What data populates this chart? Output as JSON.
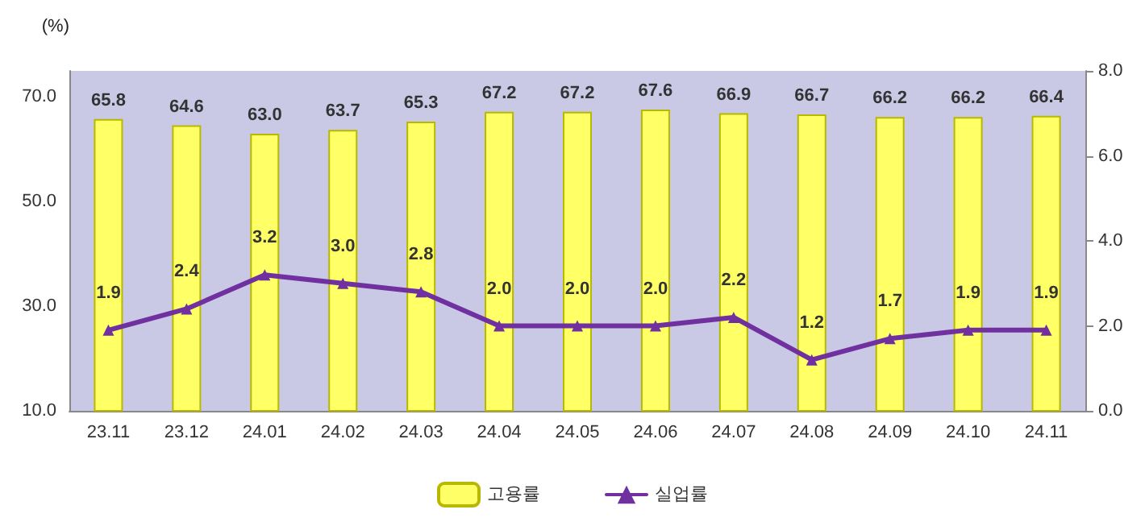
{
  "chart_data": {
    "type": "bar",
    "ylabel": "(%)",
    "categories": [
      "23.11",
      "23.12",
      "24.01",
      "24.02",
      "24.03",
      "24.04",
      "24.05",
      "24.06",
      "24.07",
      "24.08",
      "24.09",
      "24.10",
      "24.11"
    ],
    "series": [
      {
        "name": "고용률",
        "color": "#ffff66",
        "values": [
          65.8,
          64.6,
          63.0,
          63.7,
          65.3,
          67.2,
          67.2,
          67.6,
          66.9,
          66.7,
          66.2,
          66.2,
          66.4
        ],
        "value_labels": [
          "65.8",
          "64.6",
          "63.0",
          "63.7",
          "65.3",
          "67.2",
          "67.2",
          "67.6",
          "66.9",
          "66.7",
          "66.2",
          "66.2",
          "66.4"
        ]
      },
      {
        "name": "실업률",
        "type": "line",
        "axis": "y2",
        "color": "#7030a0",
        "values": [
          1.9,
          2.4,
          3.2,
          3.0,
          2.8,
          2.0,
          2.0,
          2.0,
          2.2,
          1.2,
          1.7,
          1.9,
          1.9
        ],
        "value_labels": [
          "1.9",
          "2.4",
          "3.2",
          "3.0",
          "2.8",
          "2.0",
          "2.0",
          "2.0",
          "2.2",
          "1.2",
          "1.7",
          "1.9",
          "1.9"
        ]
      }
    ],
    "ylim": [
      10,
      75
    ],
    "yticks": [
      {
        "value": 10,
        "label": "10.0"
      },
      {
        "value": 30,
        "label": "30.0"
      },
      {
        "value": 50,
        "label": "50.0"
      },
      {
        "value": 70,
        "label": "70.0"
      }
    ],
    "y2lim": [
      0,
      8
    ],
    "y2ticks": [
      {
        "value": 0,
        "label": "0.0"
      },
      {
        "value": 2,
        "label": "2.0"
      },
      {
        "value": 4,
        "label": "4.0"
      },
      {
        "value": 6,
        "label": "6.0"
      },
      {
        "value": 8,
        "label": "8.0"
      }
    ],
    "grid": false,
    "legend": "bottom",
    "marker": "triangle",
    "line_style": "solid"
  }
}
